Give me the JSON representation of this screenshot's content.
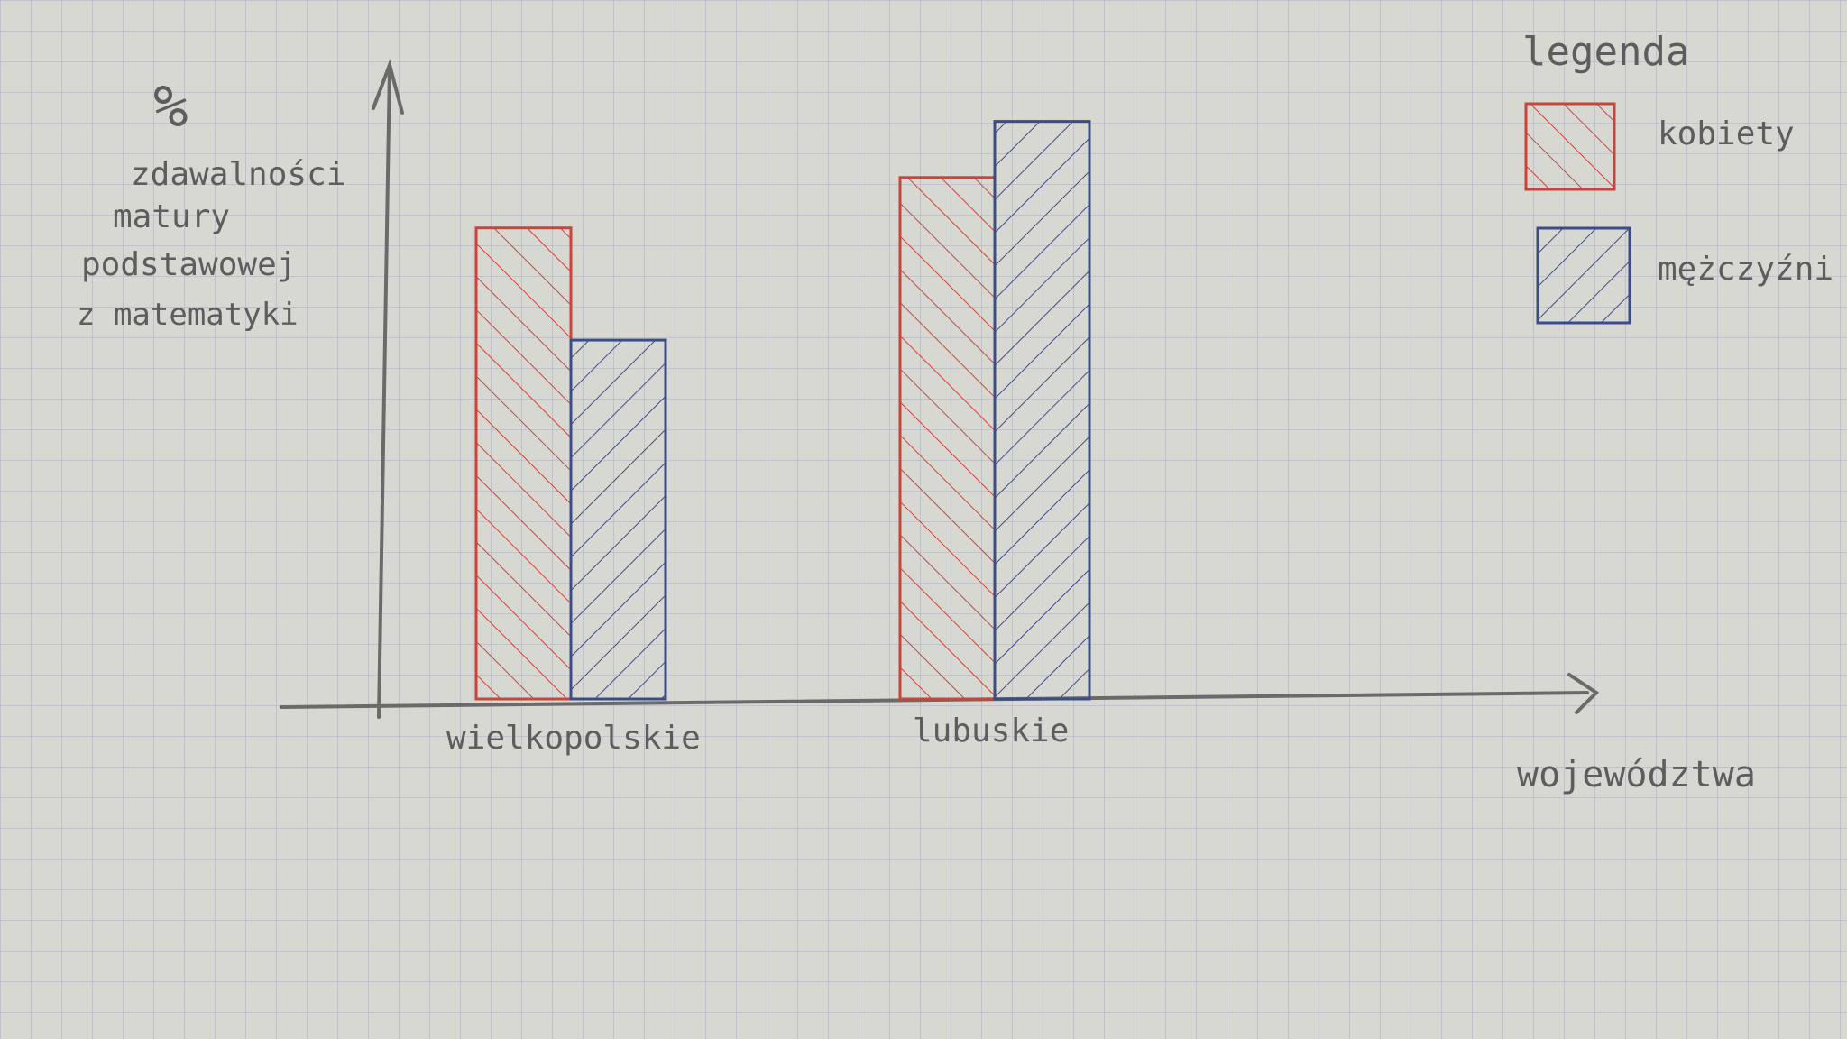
{
  "chart_data": {
    "type": "bar",
    "ylabel_unit": "%",
    "ylabel": [
      "zdawalności",
      "matury",
      "podstawowej",
      "z matematyki"
    ],
    "xlabel": "województwa",
    "categories": [
      "wielkopolskie",
      "lubuskie"
    ],
    "series": [
      {
        "name": "kobiety",
        "color": "#c9443a",
        "values": [
          84,
          93
        ]
      },
      {
        "name": "mężczyźni",
        "color": "#3c4c86",
        "values": [
          64,
          103
        ]
      }
    ],
    "ylim": [
      0,
      115
    ],
    "legend": {
      "title": "legenda",
      "position": "top-right"
    },
    "grid": true
  }
}
